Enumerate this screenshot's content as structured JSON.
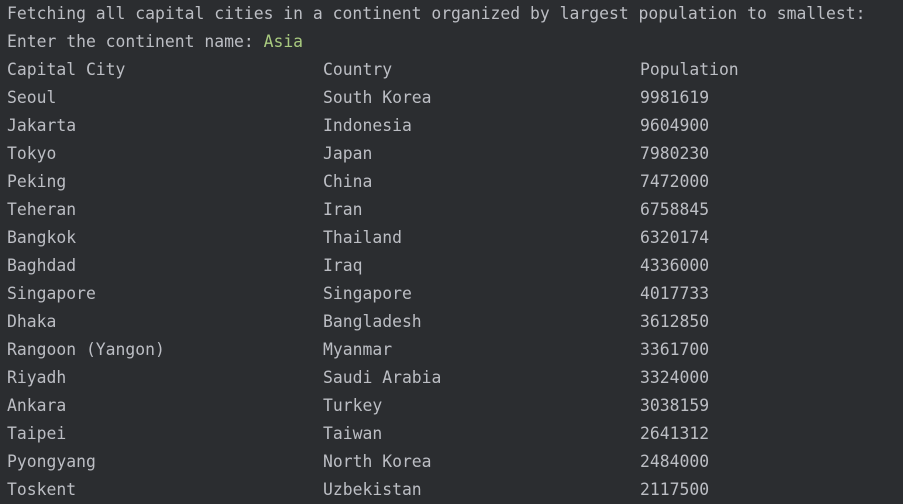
{
  "console": {
    "header": "Fetching all capital cities in a continent organized by largest population to smallest:",
    "prompt": "Enter the continent name: ",
    "input_value": "Asia",
    "columns": [
      "Capital City",
      "Country",
      "Population"
    ],
    "rows": [
      [
        "Seoul",
        "South Korea",
        "9981619"
      ],
      [
        "Jakarta",
        "Indonesia",
        "9604900"
      ],
      [
        "Tokyo",
        "Japan",
        "7980230"
      ],
      [
        "Peking",
        "China",
        "7472000"
      ],
      [
        "Teheran",
        "Iran",
        "6758845"
      ],
      [
        "Bangkok",
        "Thailand",
        "6320174"
      ],
      [
        "Baghdad",
        "Iraq",
        "4336000"
      ],
      [
        "Singapore",
        "Singapore",
        "4017733"
      ],
      [
        "Dhaka",
        "Bangladesh",
        "3612850"
      ],
      [
        "Rangoon (Yangon)",
        "Myanmar",
        "3361700"
      ],
      [
        "Riyadh",
        "Saudi Arabia",
        "3324000"
      ],
      [
        "Ankara",
        "Turkey",
        "3038159"
      ],
      [
        "Taipei",
        "Taiwan",
        "2641312"
      ],
      [
        "Pyongyang",
        "North Korea",
        "2484000"
      ],
      [
        "Toskent",
        "Uzbekistan",
        "2117500"
      ]
    ]
  },
  "colors": {
    "background": "#2b2d30",
    "text": "#bcbec4",
    "user_input": "#a8c97f"
  }
}
